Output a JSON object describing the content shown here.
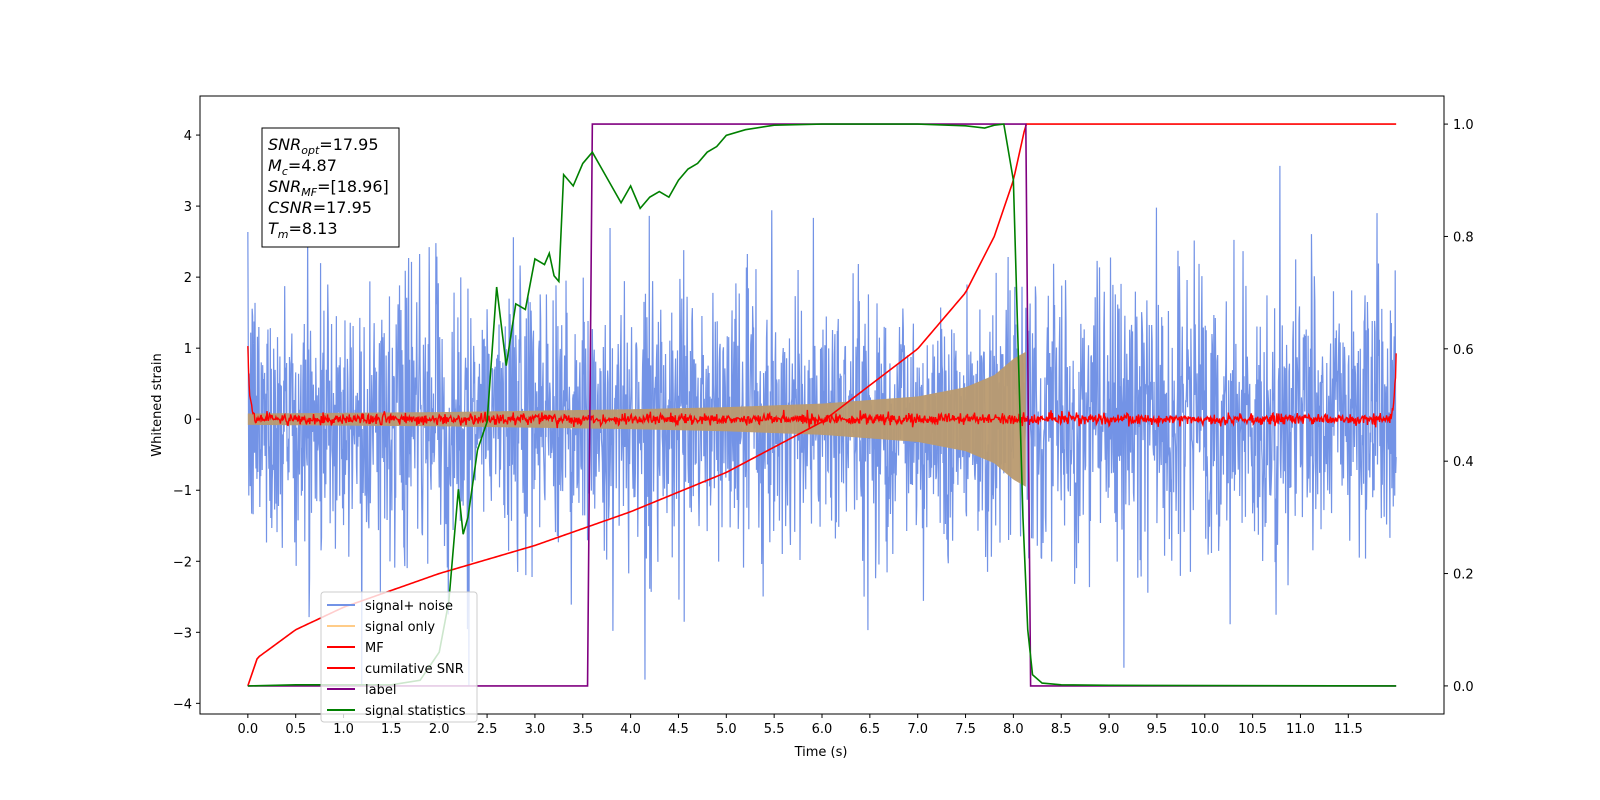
{
  "chart_data": {
    "type": "line",
    "xlabel": "Time (s)",
    "ylabel": "Whitened strain",
    "xlim": [
      -0.5,
      12.5
    ],
    "ylim": [
      -4.15,
      4.55
    ],
    "ylim_right": [
      -0.05,
      1.05
    ],
    "x_ticks": [
      "0.0",
      "0.5",
      "1.0",
      "1.5",
      "2.0",
      "2.5",
      "3.0",
      "3.5",
      "4.0",
      "4.5",
      "5.0",
      "5.5",
      "6.0",
      "6.5",
      "7.0",
      "7.5",
      "8.0",
      "8.5",
      "9.0",
      "9.5",
      "10.0",
      "10.5",
      "11.0",
      "11.5"
    ],
    "y_ticks": [
      "4",
      "3",
      "2",
      "1",
      "0",
      "−1",
      "−2",
      "−3",
      "−4"
    ],
    "y_right_ticks": [
      "1.0",
      "0.8",
      "0.6",
      "0.4",
      "0.2",
      "0.0"
    ],
    "legend_position": "lower-left",
    "colors": {
      "signal_noise": "#7393e6",
      "signal_only": "#b99a6f",
      "mf": "#ff0000",
      "cumulative_snr": "#ff0000",
      "label": "#800080",
      "signal_statistics": "#008000"
    },
    "series": [
      {
        "name": "signal+ noise",
        "axis": "left",
        "description_range": [
          -3.75,
          4.15
        ],
        "t_range": [
          0.0,
          12.0
        ]
      },
      {
        "name": "signal only",
        "axis": "left",
        "envelope": {
          "t": [
            0,
            1,
            2,
            3,
            4,
            5,
            6,
            7,
            7.5,
            7.8,
            8.0,
            8.13
          ],
          "amp": [
            0.08,
            0.09,
            0.1,
            0.12,
            0.14,
            0.17,
            0.22,
            0.32,
            0.45,
            0.62,
            0.85,
            0.95
          ]
        }
      },
      {
        "name": "MF",
        "axis": "left",
        "t_range": [
          0.0,
          12.0
        ],
        "noise_level": 0.08
      },
      {
        "name": "cumilative SNR",
        "axis": "right",
        "x": [
          0.0,
          0.1,
          0.5,
          1.0,
          2.0,
          3.0,
          4.0,
          5.0,
          6.0,
          7.0,
          7.5,
          7.8,
          8.0,
          8.13,
          12.0
        ],
        "y": [
          0.0,
          0.05,
          0.1,
          0.14,
          0.2,
          0.25,
          0.31,
          0.38,
          0.47,
          0.6,
          0.7,
          0.8,
          0.9,
          1.0,
          1.0
        ]
      },
      {
        "name": "label",
        "axis": "right",
        "x": [
          0.0,
          3.55,
          3.6,
          8.13,
          8.18,
          12.0
        ],
        "y": [
          0.0,
          0.0,
          1.0,
          1.0,
          0.0,
          0.0
        ]
      },
      {
        "name": "signal statistics",
        "axis": "right",
        "x": [
          0.0,
          0.5,
          1.0,
          1.5,
          1.8,
          2.0,
          2.1,
          2.15,
          2.2,
          2.25,
          2.3,
          2.4,
          2.5,
          2.6,
          2.7,
          2.8,
          2.9,
          3.0,
          3.1,
          3.15,
          3.2,
          3.25,
          3.3,
          3.4,
          3.5,
          3.6,
          3.7,
          3.8,
          3.9,
          4.0,
          4.1,
          4.2,
          4.3,
          4.4,
          4.5,
          4.6,
          4.7,
          4.8,
          4.9,
          5.0,
          5.2,
          5.5,
          6.0,
          7.0,
          7.5,
          7.7,
          7.8,
          7.9,
          8.0,
          8.05,
          8.1,
          8.15,
          8.2,
          8.3,
          8.5,
          9.0,
          12.0
        ],
        "y": [
          0.0,
          0.002,
          0.002,
          0.002,
          0.01,
          0.06,
          0.15,
          0.25,
          0.35,
          0.27,
          0.3,
          0.42,
          0.47,
          0.71,
          0.57,
          0.68,
          0.67,
          0.76,
          0.75,
          0.77,
          0.73,
          0.72,
          0.91,
          0.89,
          0.93,
          0.95,
          0.92,
          0.89,
          0.86,
          0.89,
          0.85,
          0.87,
          0.88,
          0.87,
          0.9,
          0.92,
          0.93,
          0.95,
          0.96,
          0.98,
          0.99,
          0.998,
          1.0,
          1.0,
          0.997,
          0.993,
          0.998,
          1.0,
          0.9,
          0.6,
          0.3,
          0.1,
          0.02,
          0.005,
          0.002,
          0.001,
          0.0
        ]
      }
    ],
    "annotations": [
      {
        "main": "SNR",
        "sub": "opt",
        "value": "=17.95"
      },
      {
        "main": "M",
        "sub": "c",
        "value": "=4.87"
      },
      {
        "main": "SNR",
        "sub": "MF",
        "value": "=[18.96]"
      },
      {
        "main": "CSNR",
        "sub": "",
        "value": "=17.95"
      },
      {
        "main": "T",
        "sub": "m",
        "value": "=8.13"
      }
    ]
  }
}
